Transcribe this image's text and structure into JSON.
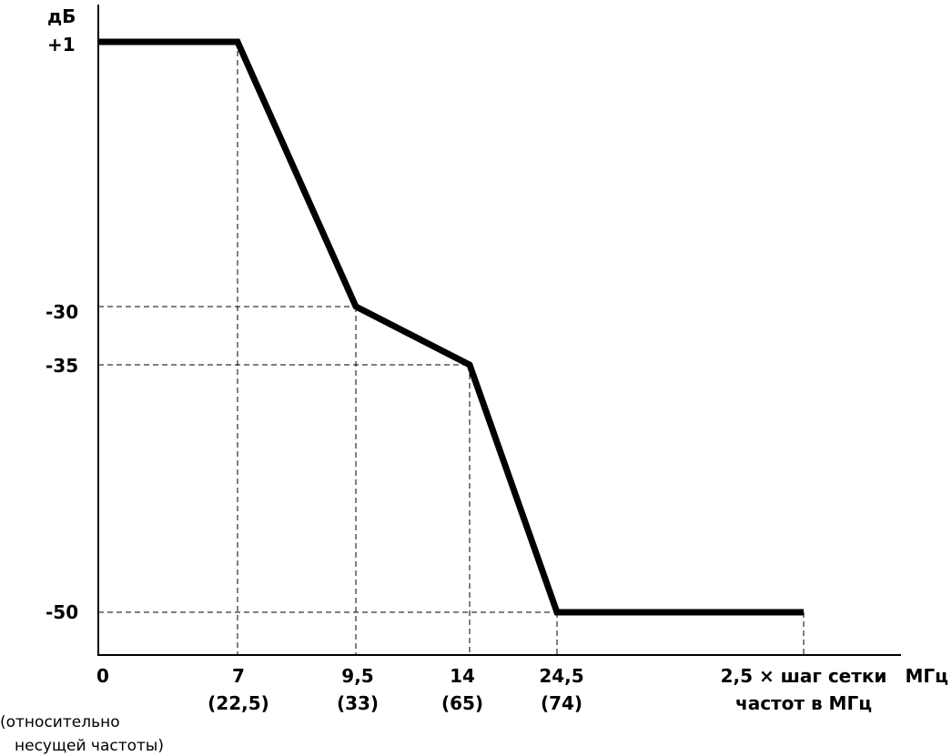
{
  "chart_data": {
    "type": "line",
    "y_unit": "дБ",
    "x_unit": "МГц",
    "x_extra_line1": "2,5 × шаг сетки",
    "x_extra_line2": "частот в МГц",
    "origin_note_line1": "(относительно",
    "origin_note_line2": "несущей частоты)",
    "points": [
      {
        "x": 0,
        "y": 1
      },
      {
        "x": 7,
        "y": 1
      },
      {
        "x": 9.5,
        "y": -30
      },
      {
        "x": 14,
        "y": -35
      },
      {
        "x": 24.5,
        "y": -50
      },
      {
        "x": "2,5 × шаг сетки частот",
        "y": -50
      }
    ],
    "y_ticks": [
      "+1",
      "-30",
      "-35",
      "-50"
    ],
    "x_ticks": [
      {
        "label": "0",
        "sub": ""
      },
      {
        "label": "7",
        "sub": "(22,5)"
      },
      {
        "label": "9,5",
        "sub": "(33)"
      },
      {
        "label": "14",
        "sub": "(65)"
      },
      {
        "label": "24,5",
        "sub": "(74)"
      }
    ],
    "grid": "dashed guide lines at breakpoints"
  }
}
